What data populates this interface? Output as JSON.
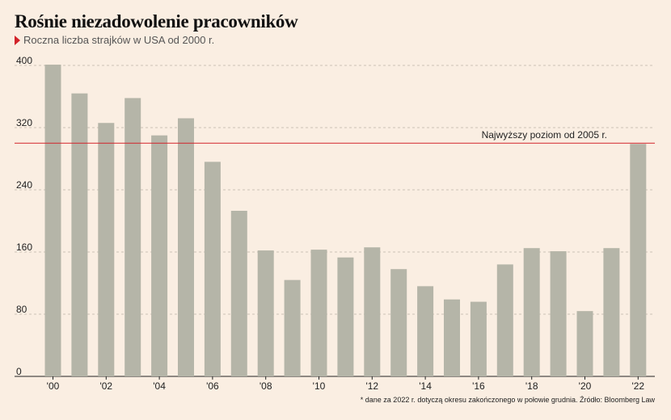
{
  "title": "Rośnie niezadowolenie pracowników",
  "subtitle": "Roczna liczba strajków w USA od 2000 r.",
  "footnote": "* dane za 2022 r. dotyczą okresu zakończonego w połowie grudnia. Źródło: Bloomberg Law",
  "colors": {
    "background": "#faeee2",
    "bar": "#b5b5a8",
    "reference_line": "#d2232a",
    "grid": "#bdb3a8"
  },
  "chart_data": {
    "type": "bar",
    "title": "Rośnie niezadowolenie pracowników",
    "subtitle": "Roczna liczba strajków w USA od 2000 r.",
    "categories": [
      "2000",
      "2001",
      "2002",
      "2003",
      "2004",
      "2005",
      "2006",
      "2007",
      "2008",
      "2009",
      "2010",
      "2011",
      "2012",
      "2013",
      "2014",
      "2015",
      "2016",
      "2017",
      "2018",
      "2019",
      "2020",
      "2021",
      "2022"
    ],
    "values": [
      401,
      364,
      326,
      358,
      310,
      332,
      276,
      213,
      162,
      124,
      163,
      153,
      166,
      138,
      116,
      99,
      96,
      144,
      165,
      161,
      84,
      165,
      299
    ],
    "x_tick_labels": [
      "'00",
      "'02",
      "'04",
      "'06",
      "'08",
      "'10",
      "'12",
      "'14",
      "'16",
      "'18",
      "'20",
      "'22"
    ],
    "y_ticks": [
      0,
      80,
      160,
      240,
      320,
      400
    ],
    "ylim": [
      0,
      410
    ],
    "grid": "dashed horizontal",
    "reference_line": {
      "value": 299,
      "label": "Najwyższy poziom od 2005 r."
    }
  }
}
